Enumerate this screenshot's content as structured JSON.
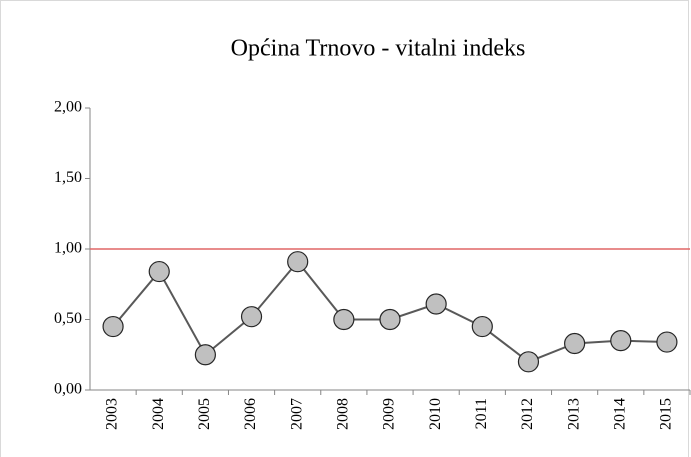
{
  "chart_data": {
    "type": "line",
    "title": "Općina Trnovo - vitalni indeks",
    "categories": [
      "2003",
      "2004",
      "2005",
      "2006",
      "2007",
      "2008",
      "2009",
      "2010",
      "2011",
      "2012",
      "2013",
      "2014",
      "2015"
    ],
    "series": [
      {
        "name": "vitalni indeks",
        "color": "#595959",
        "marker_color": "#c0c0c0",
        "values": [
          0.45,
          0.84,
          0.25,
          0.52,
          0.91,
          0.5,
          0.5,
          0.61,
          0.45,
          0.2,
          0.33,
          0.35,
          0.34
        ]
      }
    ],
    "ylim": [
      0,
      2
    ],
    "yticks": [
      {
        "value": 0,
        "label": "0,00"
      },
      {
        "value": 0.5,
        "label": "0,50"
      },
      {
        "value": 1,
        "label": "1,00"
      },
      {
        "value": 1.5,
        "label": "1,50"
      },
      {
        "value": 2,
        "label": "2,00"
      }
    ],
    "reference_line": {
      "value": 1,
      "color": "#e06666"
    },
    "grid": false
  }
}
